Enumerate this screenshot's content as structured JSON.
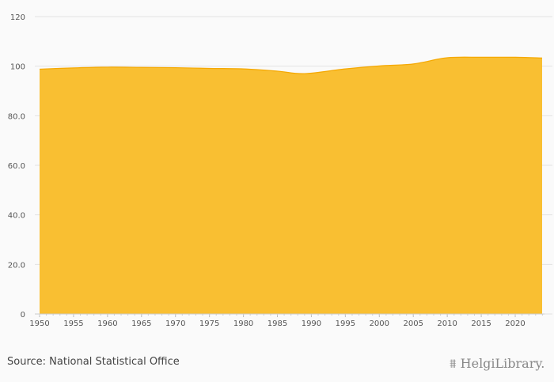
{
  "chart_data": {
    "type": "area",
    "title": "",
    "xlabel": "",
    "ylabel": "",
    "x": [
      1950,
      1955,
      1960,
      1965,
      1970,
      1975,
      1980,
      1985,
      1989,
      1995,
      2000,
      2005,
      2010,
      2015,
      2020,
      2024
    ],
    "values": [
      98.8,
      99.3,
      99.6,
      99.5,
      99.4,
      99.1,
      98.9,
      98.0,
      97.0,
      98.9,
      100.1,
      100.9,
      103.4,
      103.6,
      103.6,
      103.3
    ],
    "xlim": [
      1949.3,
      2024.3
    ],
    "ylim": [
      0,
      120
    ],
    "y_ticks": [
      "0",
      "20.0",
      "40.0",
      "60.0",
      "80.0",
      "100",
      "120"
    ],
    "y_tick_values": [
      0,
      20,
      40,
      60,
      80,
      100,
      120
    ],
    "x_ticks": [
      "1950",
      "1955",
      "1960",
      "1965",
      "1970",
      "1975",
      "1980",
      "1985",
      "1990",
      "1995",
      "2000",
      "2005",
      "2010",
      "2015",
      "2020"
    ],
    "grid": true,
    "fill_color": "#f9bf32",
    "line_color": "#f5a800"
  },
  "footer": {
    "source": "Source: National Statistical Office",
    "logo_text": "HelgiLibrary."
  }
}
